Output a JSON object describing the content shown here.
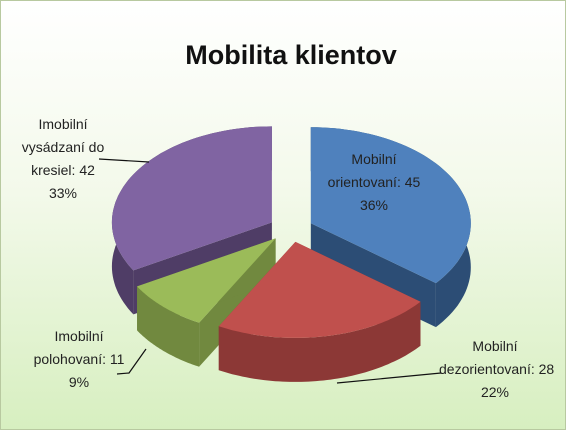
{
  "chart_data": {
    "type": "pie3d",
    "title": "Mobilita klientov",
    "categories": [
      "Mobilní orientovaní",
      "Mobilní dezorientovaní",
      "Imobilní polohovaní",
      "Imobilní vysádzaní do kresiel"
    ],
    "values": [
      45,
      28,
      11,
      42
    ],
    "label_separator": ": ",
    "percent_labels": [
      "36%",
      "22%",
      "9%",
      "33%"
    ],
    "colors": [
      "#4f81bd",
      "#c0504d",
      "#9bbb59",
      "#8064a2"
    ],
    "side_colors": [
      "#2c4d75",
      "#8c3836",
      "#71893f",
      "#4f3d66"
    ]
  }
}
